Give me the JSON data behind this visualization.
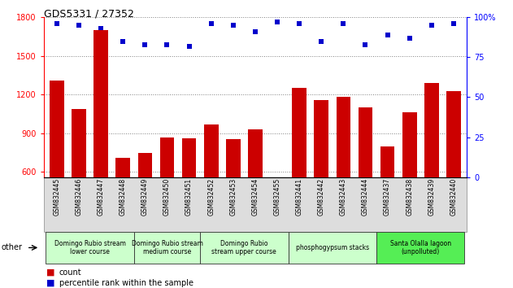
{
  "title": "GDS5331 / 27352",
  "samples": [
    "GSM832445",
    "GSM832446",
    "GSM832447",
    "GSM832448",
    "GSM832449",
    "GSM832450",
    "GSM832451",
    "GSM832452",
    "GSM832453",
    "GSM832454",
    "GSM832455",
    "GSM832441",
    "GSM832442",
    "GSM832443",
    "GSM832444",
    "GSM832437",
    "GSM832438",
    "GSM832439",
    "GSM832440"
  ],
  "counts": [
    1310,
    1090,
    1700,
    710,
    750,
    870,
    860,
    970,
    855,
    930,
    560,
    1250,
    1160,
    1185,
    1100,
    800,
    1060,
    1290,
    1230
  ],
  "percentiles": [
    96,
    95,
    93,
    85,
    83,
    83,
    82,
    96,
    95,
    91,
    97,
    96,
    85,
    96,
    83,
    89,
    87,
    95,
    96
  ],
  "bar_color": "#cc0000",
  "dot_color": "#0000cc",
  "ylim_left": [
    560,
    1800
  ],
  "ylim_right": [
    0,
    100
  ],
  "yticks_left": [
    600,
    900,
    1200,
    1500,
    1800
  ],
  "yticks_right": [
    0,
    25,
    50,
    75,
    100
  ],
  "groups": [
    {
      "label": "Domingo Rubio stream\nlower course",
      "start": 0,
      "end": 3,
      "color": "#ccffcc"
    },
    {
      "label": "Domingo Rubio stream\nmedium course",
      "start": 4,
      "end": 6,
      "color": "#ccffcc"
    },
    {
      "label": "Domingo Rubio\nstream upper course",
      "start": 7,
      "end": 10,
      "color": "#ccffcc"
    },
    {
      "label": "phosphogypsum stacks",
      "start": 11,
      "end": 14,
      "color": "#ccffcc"
    },
    {
      "label": "Santa Olalla lagoon\n(unpolluted)",
      "start": 15,
      "end": 18,
      "color": "#55ee55"
    }
  ],
  "legend_count_label": "count",
  "legend_pct_label": "percentile rank within the sample",
  "other_label": "other"
}
